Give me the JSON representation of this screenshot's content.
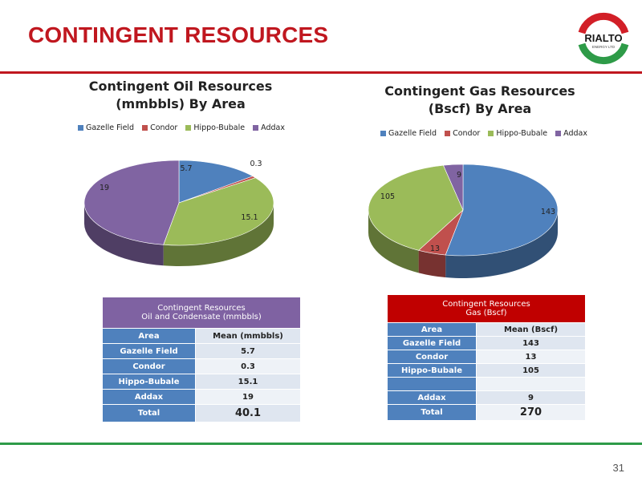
{
  "page": {
    "title": "CONTINGENT RESOURCES",
    "page_number": "31",
    "logo": {
      "text": "RIALTO",
      "subtext": "ENERGY LTD"
    }
  },
  "colors": {
    "gazelle": "#4f81bd",
    "condor": "#c0504d",
    "hippo": "#9bbb59",
    "addax": "#8064a2",
    "brand_red": "#c0171f",
    "brand_green": "#2e9b48"
  },
  "legend": [
    "Gazelle Field",
    "Condor",
    "Hippo-Bubale",
    "Addax"
  ],
  "chart_data": [
    {
      "type": "pie",
      "title_line1": "Contingent Oil Resources",
      "title_line2": "(mmbbls) By Area",
      "categories": [
        "Gazelle Field",
        "Condor",
        "Hippo-Bubale",
        "Addax"
      ],
      "values": [
        5.7,
        0.3,
        15.1,
        19
      ],
      "labels": [
        "5.7",
        "0.3",
        "15.1",
        "19"
      ],
      "legend_position": "top",
      "style": "3d"
    },
    {
      "type": "pie",
      "title_line1": "Contingent Gas Resources",
      "title_line2": "(Bscf) By Area",
      "categories": [
        "Gazelle Field",
        "Condor",
        "Hippo-Bubale",
        "Addax"
      ],
      "values": [
        143,
        13,
        105,
        9
      ],
      "labels": [
        "143",
        "13",
        "105",
        "9"
      ],
      "legend_position": "top",
      "style": "3d"
    }
  ],
  "oil_table": {
    "header_line1": "Contingent Resources",
    "header_line2": "Oil and Condensate (mmbbls)",
    "col_area": "Area",
    "col_mean": "Mean (mmbbls)",
    "rows": [
      {
        "area": "Gazelle Field",
        "mean": "5.7"
      },
      {
        "area": "Condor",
        "mean": "0.3"
      },
      {
        "area": "Hippo-Bubale",
        "mean": "15.1"
      },
      {
        "area": "Addax",
        "mean": "19"
      }
    ],
    "total_label": "Total",
    "total_value": "40.1"
  },
  "gas_table": {
    "header_line1": "Contingent Resources",
    "header_line2": "Gas (Bscf)",
    "col_area": "Area",
    "col_mean": "Mean (Bscf)",
    "rows": [
      {
        "area": "Gazelle Field",
        "mean": "143"
      },
      {
        "area": "Condor",
        "mean": "13"
      },
      {
        "area": "Hippo-Bubale",
        "mean": "105"
      },
      {
        "area": "",
        "mean": ""
      },
      {
        "area": "Addax",
        "mean": "9"
      }
    ],
    "total_label": "Total",
    "total_value": "270"
  }
}
